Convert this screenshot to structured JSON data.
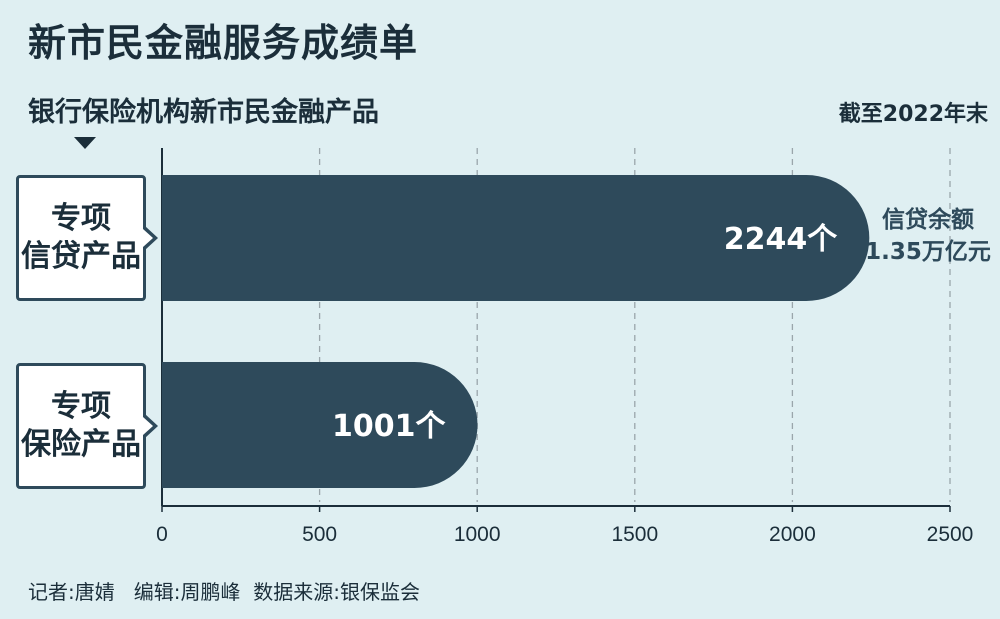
{
  "title": "新市民金融服务成绩单",
  "subtitle": "银行保险机构新市民金融产品",
  "note": "截至2022年末",
  "footer": "记者:唐婧   编辑:周鹏峰  数据来源:银保监会",
  "side_note": {
    "line1": "信贷余额",
    "line2": "1.35万亿元"
  },
  "colors": {
    "bar": "#2e4a5b",
    "background": "#dfeff2",
    "grid": "#9aa6ab",
    "text": "#1b2e3a"
  },
  "chart_data": {
    "type": "bar",
    "orientation": "horizontal",
    "categories": [
      "专项\n信贷产品",
      "专项\n保险产品"
    ],
    "values": [
      2244,
      1001
    ],
    "value_labels": [
      "2244个",
      "1001个"
    ],
    "xlim": [
      0,
      2500
    ],
    "xticks": [
      "0",
      "500",
      "1000",
      "1500",
      "2000",
      "2500"
    ],
    "grid": true
  }
}
